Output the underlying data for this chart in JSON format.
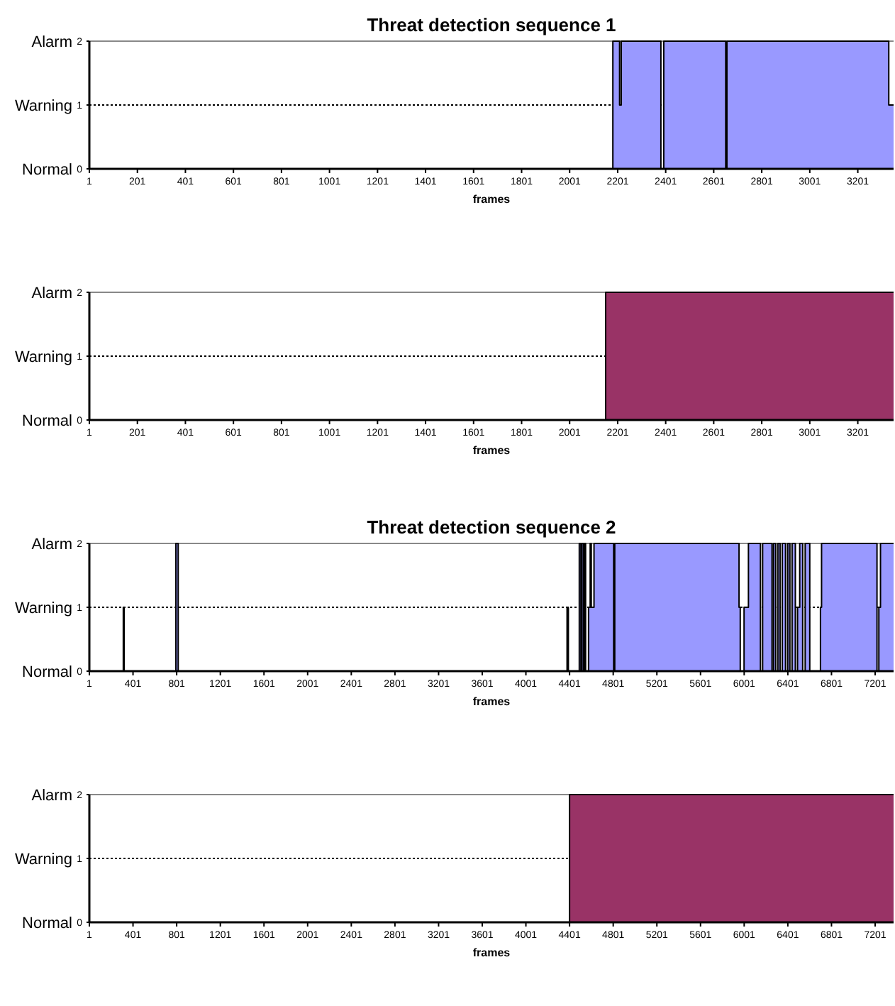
{
  "chart_data": [
    {
      "type": "area",
      "title": "Threat detection sequence 1",
      "xlabel": "frames",
      "xlim": [
        1,
        3350
      ],
      "xticks": [
        1,
        201,
        401,
        601,
        801,
        1001,
        1201,
        1401,
        1601,
        1801,
        2001,
        2201,
        2401,
        2601,
        2801,
        3001,
        3201
      ],
      "ylim": [
        0,
        2
      ],
      "yticks": [
        0,
        1,
        2
      ],
      "annotations": [
        "Normal",
        "Warning",
        "Alarm"
      ],
      "ref_lines": [
        {
          "axis": "y",
          "value": 1,
          "line_style": "dotted",
          "color": "#000000"
        }
      ],
      "series": [
        {
          "color": "#9999ff",
          "x": [
            1,
            2181,
            2209,
            2216,
            2381,
            2393,
            2651,
            2656,
            3330,
            3350
          ],
          "values": [
            0,
            2,
            1,
            2,
            0,
            2,
            0,
            2,
            1,
            1
          ]
        }
      ]
    },
    {
      "type": "area",
      "xlabel": "frames",
      "xlim": [
        1,
        3350
      ],
      "xticks": [
        1,
        201,
        401,
        601,
        801,
        1001,
        1201,
        1401,
        1601,
        1801,
        2001,
        2201,
        2401,
        2601,
        2801,
        3001,
        3201
      ],
      "ylim": [
        0,
        2
      ],
      "yticks": [
        0,
        1,
        2
      ],
      "annotations": [
        "Normal",
        "Warning",
        "Alarm"
      ],
      "ref_lines": [
        {
          "axis": "y",
          "value": 1,
          "line_style": "dotted",
          "color": "#000000"
        }
      ],
      "series": [
        {
          "color": "#993366",
          "x": [
            1,
            2151,
            3350
          ],
          "values": [
            0,
            2,
            2
          ]
        }
      ]
    },
    {
      "type": "area",
      "title": "Threat detection sequence 2",
      "xlabel": "frames",
      "xlim": [
        1,
        7370
      ],
      "xticks": [
        1,
        401,
        801,
        1201,
        1601,
        2001,
        2401,
        2801,
        3201,
        3601,
        4001,
        4401,
        4801,
        5201,
        5601,
        6001,
        6401,
        6801,
        7201
      ],
      "ylim": [
        0,
        2
      ],
      "yticks": [
        0,
        1,
        2
      ],
      "annotations": [
        "Normal",
        "Warning",
        "Alarm"
      ],
      "ref_lines": [
        {
          "axis": "y",
          "value": 1,
          "line_style": "dotted",
          "color": "#000000"
        }
      ],
      "series": [
        {
          "color": "#9999ff",
          "x": [
            1,
            312,
            320,
            794,
            815,
            4378,
            4390,
            4490,
            4505,
            4515,
            4530,
            4540,
            4548,
            4575,
            4590,
            4600,
            4625,
            4805,
            4815,
            5954,
            5965,
            6000,
            6040,
            6150,
            6170,
            6256,
            6270,
            6290,
            6310,
            6330,
            6350,
            6380,
            6400,
            6420,
            6440,
            6470,
            6490,
            6510,
            6537,
            6560,
            6602,
            6700,
            6710,
            7218,
            7235,
            7250,
            7370
          ],
          "values": [
            0,
            1,
            0,
            2,
            0,
            1,
            0,
            2,
            0,
            2,
            0,
            2,
            0,
            1,
            2,
            1,
            2,
            0,
            2,
            1,
            0,
            1,
            2,
            0,
            2,
            0,
            2,
            0,
            2,
            0,
            2,
            0,
            2,
            0,
            2,
            0,
            1,
            2,
            0,
            2,
            0,
            1,
            2,
            0,
            1,
            2,
            2
          ]
        }
      ]
    },
    {
      "type": "area",
      "xlabel": "frames",
      "xlim": [
        1,
        7370
      ],
      "xticks": [
        1,
        401,
        801,
        1201,
        1601,
        2001,
        2401,
        2801,
        3201,
        3601,
        4001,
        4401,
        4801,
        5201,
        5601,
        6001,
        6401,
        6801,
        7201
      ],
      "ylim": [
        0,
        2
      ],
      "yticks": [
        0,
        1,
        2
      ],
      "annotations": [
        "Normal",
        "Warning",
        "Alarm"
      ],
      "ref_lines": [
        {
          "axis": "y",
          "value": 1,
          "line_style": "dotted",
          "color": "#000000"
        }
      ],
      "series": [
        {
          "color": "#993366",
          "x": [
            1,
            4401,
            7370
          ],
          "values": [
            0,
            2,
            2
          ]
        }
      ]
    }
  ]
}
